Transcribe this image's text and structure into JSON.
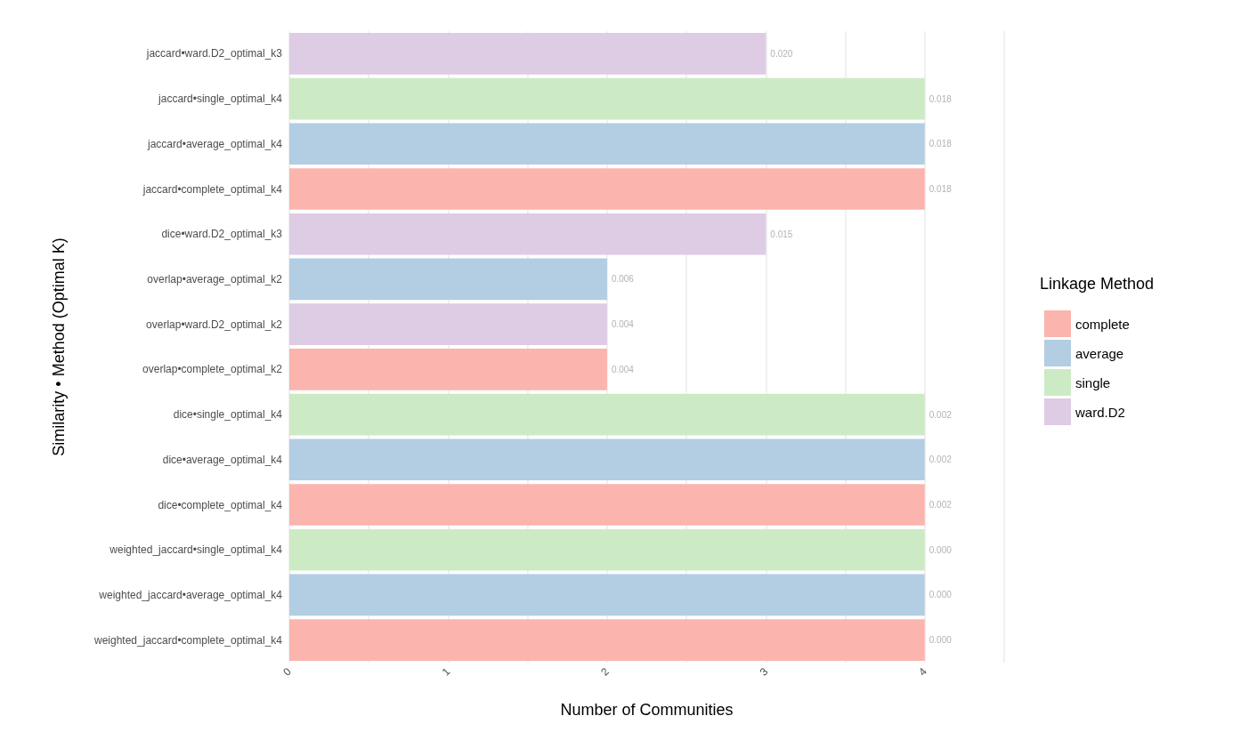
{
  "chart_data": {
    "type": "bar",
    "orientation": "horizontal",
    "xlabel": "Number of Communities",
    "ylabel": "Similarity • Method (Optimal K)",
    "legend_title": "Linkage Method",
    "categories": [
      "jaccard•ward.D2_optimal_k3",
      "jaccard•single_optimal_k4",
      "jaccard•average_optimal_k4",
      "jaccard•complete_optimal_k4",
      "dice•ward.D2_optimal_k3",
      "overlap•average_optimal_k2",
      "overlap•ward.D2_optimal_k2",
      "overlap•complete_optimal_k2",
      "dice•single_optimal_k4",
      "dice•average_optimal_k4",
      "dice•complete_optimal_k4",
      "weighted_jaccard•single_optimal_k4",
      "weighted_jaccard•average_optimal_k4",
      "weighted_jaccard•complete_optimal_k4"
    ],
    "series": [
      {
        "name": "complete",
        "color": "#fbb4ae",
        "values": [
          null,
          null,
          null,
          4,
          null,
          null,
          null,
          2,
          null,
          null,
          4,
          null,
          null,
          4
        ]
      },
      {
        "name": "average",
        "color": "#b3cde3",
        "values": [
          null,
          null,
          4,
          null,
          null,
          2,
          null,
          null,
          null,
          4,
          null,
          null,
          4,
          null
        ]
      },
      {
        "name": "single",
        "color": "#ccebc5",
        "values": [
          null,
          4,
          null,
          null,
          null,
          null,
          null,
          null,
          4,
          null,
          null,
          4,
          null,
          null
        ]
      },
      {
        "name": "ward.D2",
        "color": "#decbe4",
        "values": [
          3,
          null,
          null,
          null,
          3,
          null,
          2,
          null,
          null,
          null,
          null,
          null,
          null,
          null
        ]
      }
    ],
    "annotations": [
      {
        "text": "0.020",
        "x": 3,
        "y": "jaccard•ward.D2_optimal_k3"
      },
      {
        "text": "0.018",
        "x": 4,
        "y": "jaccard•single_optimal_k4"
      },
      {
        "text": "0.018",
        "x": 4,
        "y": "jaccard•average_optimal_k4"
      },
      {
        "text": "0.018",
        "x": 4,
        "y": "jaccard•complete_optimal_k4"
      },
      {
        "text": "0.015",
        "x": 3,
        "y": "dice•ward.D2_optimal_k3"
      },
      {
        "text": "0.006",
        "x": 2,
        "y": "overlap•average_optimal_k2"
      },
      {
        "text": "0.004",
        "x": 2,
        "y": "overlap•ward.D2_optimal_k2"
      },
      {
        "text": "0.004",
        "x": 2,
        "y": "overlap•complete_optimal_k2"
      },
      {
        "text": "0.002",
        "x": 4,
        "y": "dice•single_optimal_k4"
      },
      {
        "text": "0.002",
        "x": 4,
        "y": "dice•average_optimal_k4"
      },
      {
        "text": "0.002",
        "x": 4,
        "y": "dice•complete_optimal_k4"
      },
      {
        "text": "0.000",
        "x": 4,
        "y": "weighted_jaccard•single_optimal_k4"
      },
      {
        "text": "0.000",
        "x": 4,
        "y": "weighted_jaccard•average_optimal_k4"
      },
      {
        "text": "0.000",
        "x": 4,
        "y": "weighted_jaccard•complete_optimal_k4"
      }
    ],
    "xlim": [
      0,
      4.5
    ],
    "xticks": [
      0,
      1,
      2,
      3,
      4
    ],
    "grid": "x",
    "legend": "right"
  }
}
